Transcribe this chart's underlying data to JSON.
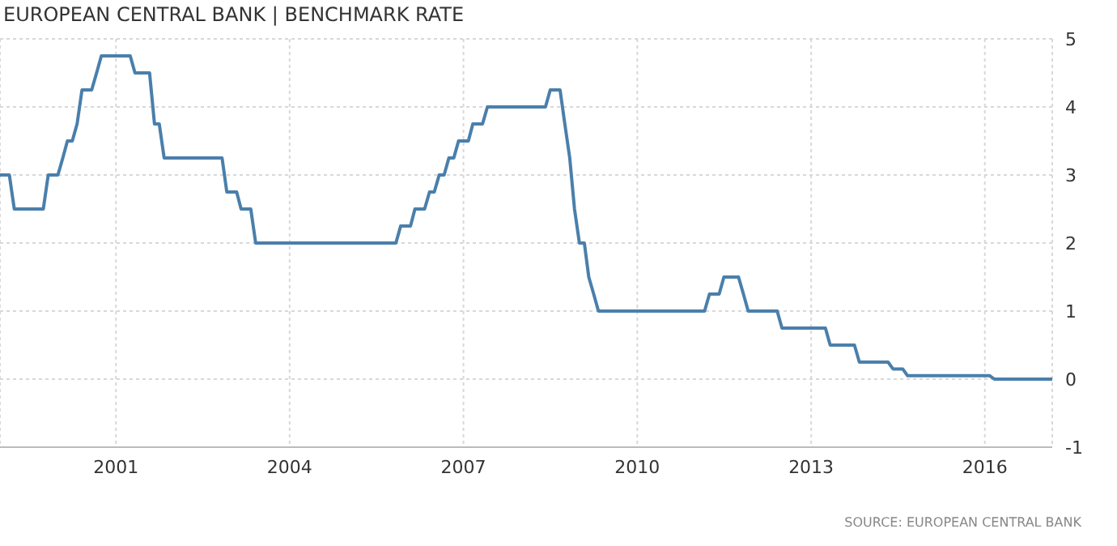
{
  "chart_data": {
    "type": "line",
    "title": "EUROPEAN CENTRAL BANK | BENCHMARK RATE",
    "annotations": [
      "SOURCE: EUROPEAN CENTRAL BANK"
    ],
    "x": [
      "1999-01",
      "1999-03",
      "1999-04",
      "1999-10",
      "1999-11",
      "2000-01",
      "2000-02",
      "2000-03",
      "2000-04",
      "2000-05",
      "2000-06",
      "2000-08",
      "2000-09",
      "2000-10",
      "2001-04",
      "2001-05",
      "2001-08",
      "2001-09",
      "2001-10",
      "2001-11",
      "2002-11",
      "2002-12",
      "2003-02",
      "2003-03",
      "2003-05",
      "2003-06",
      "2005-11",
      "2005-12",
      "2006-02",
      "2006-03",
      "2006-05",
      "2006-06",
      "2006-07",
      "2006-08",
      "2006-09",
      "2006-10",
      "2006-11",
      "2006-12",
      "2007-02",
      "2007-03",
      "2007-05",
      "2007-06",
      "2008-06",
      "2008-07",
      "2008-09",
      "2008-10",
      "2008-11",
      "2008-12",
      "2009-01",
      "2009-02",
      "2009-03",
      "2009-04",
      "2009-05",
      "2011-03",
      "2011-04",
      "2011-06",
      "2011-07",
      "2011-10",
      "2011-11",
      "2011-12",
      "2012-06",
      "2012-07",
      "2013-04",
      "2013-05",
      "2013-10",
      "2013-11",
      "2014-05",
      "2014-06",
      "2014-08",
      "2014-09",
      "2016-02",
      "2016-03",
      "2017-03"
    ],
    "series": [
      {
        "color": "#4a7fab",
        "values": [
          3,
          3,
          2.5,
          2.5,
          3,
          3,
          3.25,
          3.5,
          3.5,
          3.75,
          4.25,
          4.25,
          4.5,
          4.75,
          4.75,
          4.5,
          4.5,
          3.75,
          3.75,
          3.25,
          3.25,
          2.75,
          2.75,
          2.5,
          2.5,
          2,
          2,
          2.25,
          2.25,
          2.5,
          2.5,
          2.75,
          2.75,
          3,
          3,
          3.25,
          3.25,
          3.5,
          3.5,
          3.75,
          3.75,
          4,
          4,
          4.25,
          4.25,
          3.75,
          3.25,
          2.5,
          2,
          2,
          1.5,
          1.25,
          1,
          1,
          1.25,
          1.25,
          1.5,
          1.5,
          1.25,
          1,
          1,
          0.75,
          0.75,
          0.5,
          0.5,
          0.25,
          0.25,
          0.15,
          0.15,
          0.05,
          0.05,
          0,
          0
        ]
      }
    ],
    "xlim": [
      "1999-01",
      "2017-03"
    ],
    "xticks": [
      "2001",
      "2004",
      "2007",
      "2010",
      "2013",
      "2016"
    ],
    "ylim": [
      -1,
      5
    ],
    "yticks": [
      -1,
      0,
      1,
      2,
      3,
      4,
      5
    ],
    "grid": true
  }
}
